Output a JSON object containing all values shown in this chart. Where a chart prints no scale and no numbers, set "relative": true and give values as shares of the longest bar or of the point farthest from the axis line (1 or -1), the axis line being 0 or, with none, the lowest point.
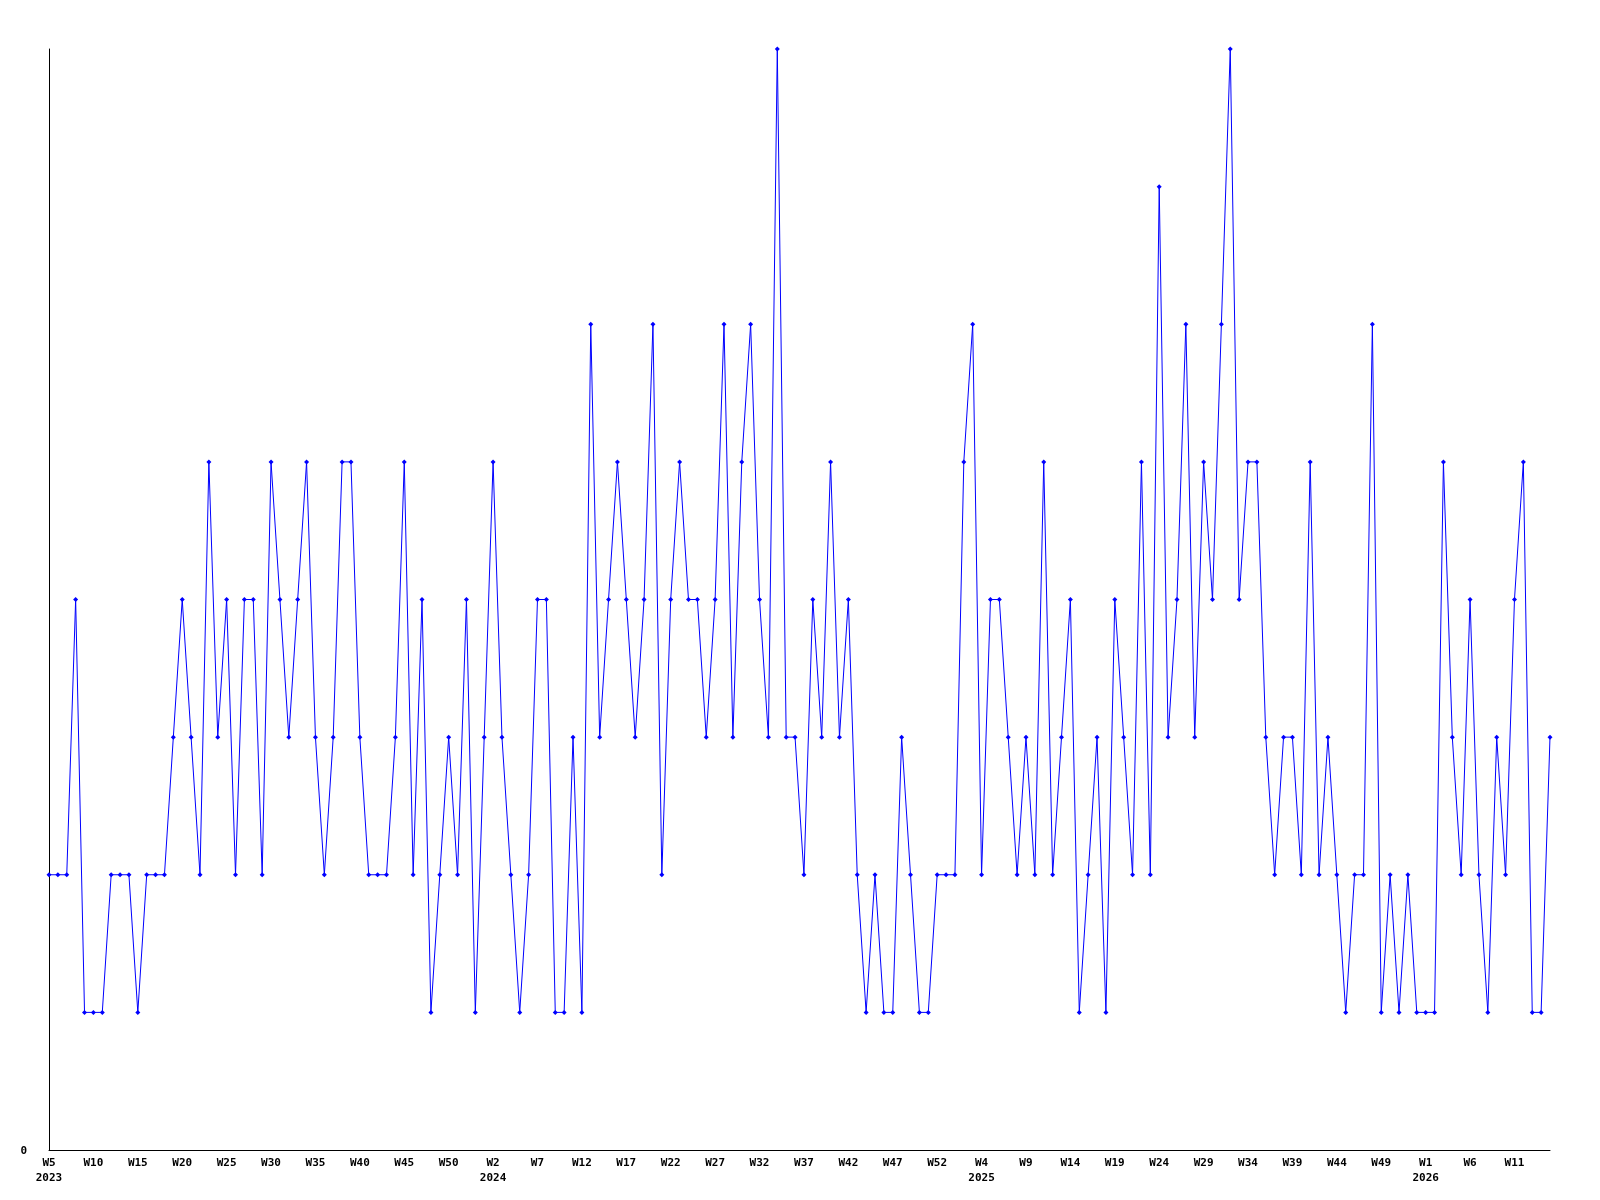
{
  "chart_data": {
    "type": "line",
    "relative": true,
    "color": "#0000ff",
    "marker": "diamond",
    "categories": [
      "W5\n2023",
      null,
      null,
      null,
      null,
      "W10",
      null,
      null,
      null,
      null,
      "W15",
      null,
      null,
      null,
      null,
      "W20",
      null,
      null,
      null,
      null,
      "W25",
      null,
      null,
      null,
      null,
      "W30",
      null,
      null,
      null,
      null,
      "W35",
      null,
      null,
      null,
      null,
      "W40",
      null,
      null,
      null,
      null,
      "W45",
      null,
      null,
      null,
      null,
      "W50",
      null,
      null,
      null,
      null,
      "W2\n2024",
      null,
      null,
      null,
      null,
      "W7",
      null,
      null,
      null,
      null,
      "W12",
      null,
      null,
      null,
      null,
      "W17",
      null,
      null,
      null,
      null,
      "W22",
      null,
      null,
      null,
      null,
      "W27",
      null,
      null,
      null,
      null,
      "W32",
      null,
      null,
      null,
      null,
      "W37",
      null,
      null,
      null,
      null,
      "W42",
      null,
      null,
      null,
      null,
      "W47",
      null,
      null,
      null,
      null,
      "W52",
      null,
      null,
      null,
      null,
      "W4\n2025",
      null,
      null,
      null,
      null,
      "W9",
      null,
      null,
      null,
      null,
      "W14",
      null,
      null,
      null,
      null,
      "W19",
      null,
      null,
      null,
      null,
      "W24",
      null,
      null,
      null,
      null,
      "W29",
      null,
      null,
      null,
      null,
      "W34",
      null,
      null,
      null,
      null,
      "W39",
      null,
      null,
      null,
      null,
      "W44",
      null,
      null,
      null,
      null,
      "W49",
      null,
      null,
      null,
      null,
      "W1\n2026",
      null,
      null,
      null,
      null,
      "W6",
      null,
      null,
      null,
      null,
      "W11",
      null,
      null,
      null,
      null
    ],
    "values": [
      0.25,
      0.25,
      0.25,
      0.5,
      0.125,
      0.125,
      0.125,
      0.25,
      0.25,
      0.25,
      0.125,
      0.25,
      0.25,
      0.25,
      0.375,
      0.5,
      0.375,
      0.25,
      0.625,
      0.375,
      0.5,
      0.25,
      0.5,
      0.5,
      0.25,
      0.625,
      0.5,
      0.375,
      0.5,
      0.625,
      0.375,
      0.25,
      0.375,
      0.625,
      0.625,
      0.375,
      0.25,
      0.25,
      0.25,
      0.375,
      0.625,
      0.25,
      0.5,
      0.125,
      0.25,
      0.375,
      0.25,
      0.5,
      0.125,
      0.375,
      0.625,
      0.375,
      0.25,
      0.125,
      0.25,
      0.5,
      0.5,
      0.125,
      0.125,
      0.375,
      0.125,
      0.75,
      0.375,
      0.5,
      0.625,
      0.5,
      0.375,
      0.5,
      0.75,
      0.25,
      0.5,
      0.625,
      0.5,
      0.5,
      0.375,
      0.5,
      0.75,
      0.375,
      0.625,
      0.75,
      0.5,
      0.375,
      1,
      0.375,
      0.375,
      0.25,
      0.5,
      0.375,
      0.625,
      0.375,
      0.5,
      0.25,
      0.125,
      0.25,
      0.125,
      0.125,
      0.375,
      0.25,
      0.125,
      0.125,
      0.25,
      0.25,
      0.25,
      0.625,
      0.75,
      0.25,
      0.5,
      0.5,
      0.375,
      0.25,
      0.375,
      0.25,
      0.625,
      0.25,
      0.375,
      0.5,
      0.125,
      0.25,
      0.375,
      0.125,
      0.5,
      0.375,
      0.25,
      0.625,
      0.25,
      0.875,
      0.375,
      0.5,
      0.75,
      0.375,
      0.625,
      0.5,
      0.75,
      1,
      0.5,
      0.625,
      0.625,
      0.375,
      0.25,
      0.375,
      0.375,
      0.25,
      0.625,
      0.25,
      0.375,
      0.25,
      0.125,
      0.25,
      0.25,
      0.75,
      0.125,
      0.25,
      0.125,
      0.25,
      0.125,
      0.125,
      0.125,
      0.625,
      0.375,
      0.25,
      0.5,
      0.25,
      0.125,
      0.375,
      0.25,
      0.5,
      0.625,
      0.125,
      0.125,
      0.375
    ],
    "annotations": [
      "0"
    ]
  }
}
